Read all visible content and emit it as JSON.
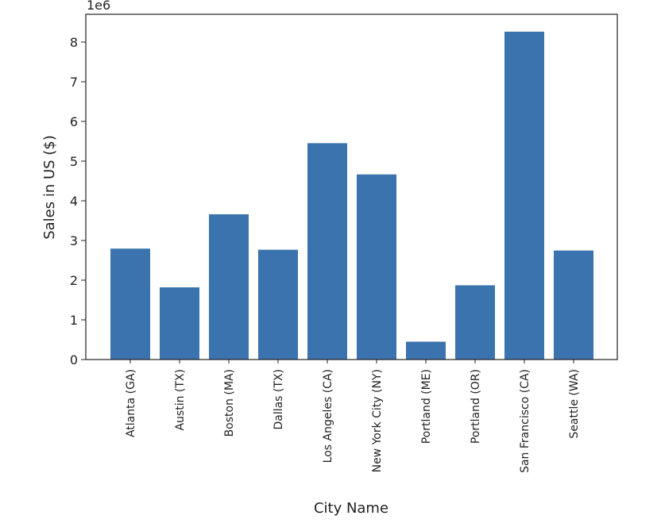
{
  "chart_data": {
    "type": "bar",
    "title": "",
    "xlabel": "City Name",
    "ylabel": "Sales in US ($)",
    "y_multiplier_label": "1e6",
    "categories": [
      "Atlanta (GA)",
      "Austin (TX)",
      "Boston (MA)",
      "Dallas (TX)",
      "Los Angeles (CA)",
      "New York City (NY)",
      "Portland (ME)",
      "Portland (OR)",
      "San Francisco (CA)",
      "Seattle (WA)"
    ],
    "values": [
      2795000,
      1819000,
      3661000,
      2767000,
      5452000,
      4665000,
      450000,
      1871000,
      8262000,
      2747000
    ],
    "ylim": [
      0,
      8700000
    ],
    "yticks": [
      0,
      1000000,
      2000000,
      3000000,
      4000000,
      5000000,
      6000000,
      7000000,
      8000000
    ],
    "ytick_labels": [
      "0",
      "1",
      "2",
      "3",
      "4",
      "5",
      "6",
      "7",
      "8"
    ],
    "grid": false,
    "colors": {
      "bar": "#3a73ad",
      "axis": "#222222"
    }
  }
}
